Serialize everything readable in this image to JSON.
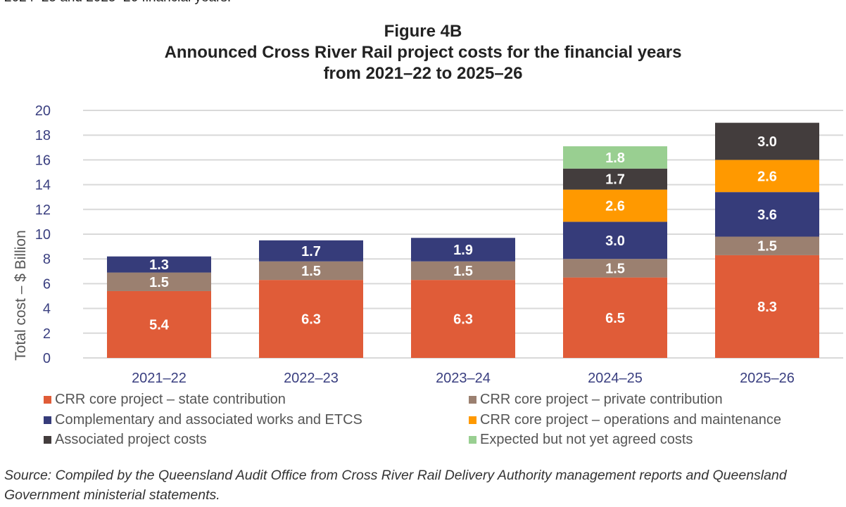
{
  "intro_text": "2024–25 and 2025–26 financial years.",
  "chart_data": {
    "type": "bar",
    "stacked": true,
    "title": "Figure 4B",
    "subtitle_lines": [
      "Announced Cross River Rail project costs for the financial years",
      "from 2021–22 to 2025–26"
    ],
    "xlabel": "",
    "ylabel": "Total cost – $ Billion",
    "ylim": [
      0,
      20
    ],
    "yticks": [
      0,
      2,
      4,
      6,
      8,
      10,
      12,
      14,
      16,
      18,
      20
    ],
    "grid": true,
    "legend_position": "bottom",
    "categories": [
      "2021–22",
      "2022–23",
      "2023–24",
      "2024–25",
      "2025–26"
    ],
    "series": [
      {
        "name": "CRR core project – state contribution",
        "color": "#E05C38",
        "values": [
          5.4,
          6.3,
          6.3,
          6.5,
          8.3
        ]
      },
      {
        "name": "CRR core project – private contribution",
        "color": "#9B8070",
        "values": [
          1.5,
          1.5,
          1.5,
          1.5,
          1.5
        ]
      },
      {
        "name": "Complementary and associated works and ETCS",
        "color": "#363C7A",
        "values": [
          1.3,
          1.7,
          1.9,
          3.0,
          3.6
        ]
      },
      {
        "name": "CRR core project – operations and maintenance",
        "color": "#FF9900",
        "values": [
          0,
          0,
          0,
          2.6,
          2.6
        ]
      },
      {
        "name": "Associated project costs",
        "color": "#433D3D",
        "values": [
          0,
          0,
          0,
          1.7,
          3.0
        ]
      },
      {
        "name": "Expected but not yet agreed costs",
        "color": "#99CF91",
        "values": [
          0,
          0,
          0,
          1.8,
          0
        ]
      }
    ]
  },
  "source_text": "Source: Compiled by the Queensland Audit Office from Cross River Rail Delivery Authority management reports and Queensland Government ministerial statements."
}
